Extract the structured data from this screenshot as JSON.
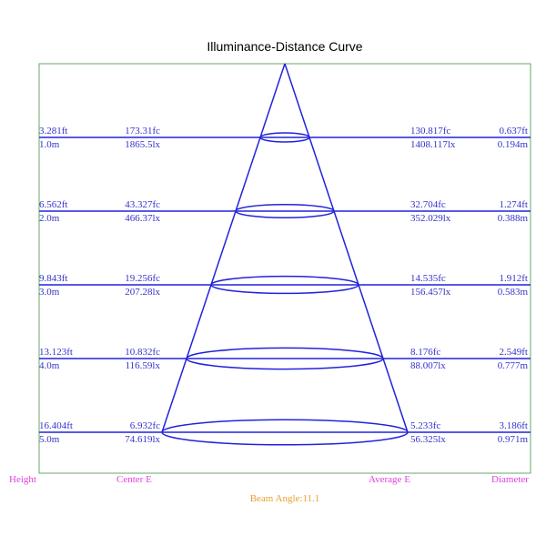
{
  "title": "Illuminance-Distance Curve",
  "rows": [
    {
      "height_ft": "3.281ft",
      "height_m": "1.0m",
      "center_fc": "173.31fc",
      "center_lx": "1865.5lx",
      "average_fc": "130.817fc",
      "average_lx": "1408.117lx",
      "diameter_ft": "0.637ft",
      "diameter_m": "0.194m"
    },
    {
      "height_ft": "6.562ft",
      "height_m": "2.0m",
      "center_fc": "43.327fc",
      "center_lx": "466.37lx",
      "average_fc": "32.704fc",
      "average_lx": "352.029lx",
      "diameter_ft": "1.274ft",
      "diameter_m": "0.388m"
    },
    {
      "height_ft": "9.843ft",
      "height_m": "3.0m",
      "center_fc": "19.256fc",
      "center_lx": "207.28lx",
      "average_fc": "14.535fc",
      "average_lx": "156.457lx",
      "diameter_ft": "1.912ft",
      "diameter_m": "0.583m"
    },
    {
      "height_ft": "13.123ft",
      "height_m": "4.0m",
      "center_fc": "10.832fc",
      "center_lx": "116.59lx",
      "average_fc": "8.176fc",
      "average_lx": "88.007lx",
      "diameter_ft": "2.549ft",
      "diameter_m": "0.777m"
    },
    {
      "height_ft": "16.404ft",
      "height_m": "5.0m",
      "center_fc": "6.932fc",
      "center_lx": "74.619lx",
      "average_fc": "5.233fc",
      "average_lx": "56.325lx",
      "diameter_ft": "3.186ft",
      "diameter_m": "0.971m"
    }
  ],
  "footer": {
    "height": "Height",
    "center": "Center E",
    "average": "Average E",
    "diameter": "Diameter"
  },
  "beam_angle": "Beam Angle:11.1"
}
